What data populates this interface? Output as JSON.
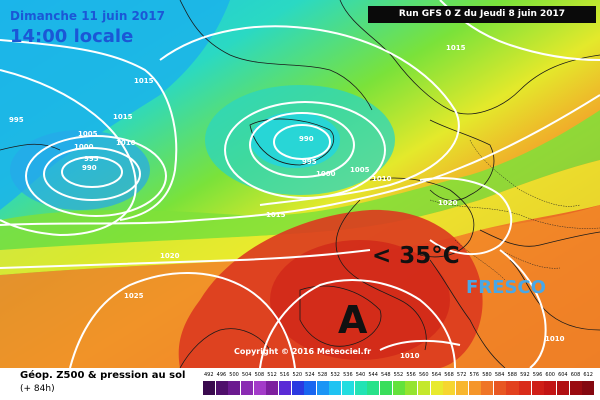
{
  "header": {
    "date": "Dimanche 11 juin 2017",
    "time": "14:00 locale",
    "run": "Run GFS 0 Z du Jeudi 8 juin 2017"
  },
  "annotations": {
    "high_pressure": "A",
    "temperature": "< 35°C",
    "fresco": "FRESCO",
    "copyright": "Copyright © 2016 Meteociel.fr"
  },
  "isobars": [
    {
      "label": "995"
    },
    {
      "label": "1005"
    },
    {
      "label": "1000"
    },
    {
      "label": "995"
    },
    {
      "label": "990"
    },
    {
      "label": "1010"
    },
    {
      "label": "1015"
    },
    {
      "label": "1015"
    },
    {
      "label": "990"
    },
    {
      "label": "995"
    },
    {
      "label": "1000"
    },
    {
      "label": "1005"
    },
    {
      "label": "1010"
    },
    {
      "label": "1015"
    },
    {
      "label": "1015"
    },
    {
      "label": "1020"
    },
    {
      "label": "1020"
    },
    {
      "label": "1025"
    },
    {
      "label": "1010"
    },
    {
      "label": "1010"
    }
  ],
  "footer": {
    "title": "Géop. Z500 & pression au sol",
    "lead": "(+ 84h)"
  },
  "legend": {
    "labels": [
      "492",
      "496",
      "500",
      "504",
      "508",
      "512",
      "516",
      "520",
      "524",
      "528",
      "532",
      "536",
      "540",
      "544",
      "548",
      "552",
      "556",
      "560",
      "564",
      "568",
      "572",
      "576",
      "580",
      "584",
      "588",
      "592",
      "596",
      "600",
      "604",
      "608",
      "612"
    ],
    "colors": [
      "#3a0a4e",
      "#4f0f6b",
      "#6b1a8f",
      "#8a2bb2",
      "#a33bc9",
      "#7d1f9f",
      "#5a2bd6",
      "#2a39e0",
      "#1866f0",
      "#1a95f5",
      "#1fc3f2",
      "#22dde0",
      "#22e3b4",
      "#27e28a",
      "#39de5b",
      "#63e23c",
      "#94e42f",
      "#c4e82c",
      "#e8ea2e",
      "#f6d630",
      "#f8b62d",
      "#f5962a",
      "#ef7526",
      "#e85722",
      "#e2411e",
      "#d92c1a",
      "#cf1e17",
      "#c21414",
      "#b00f12",
      "#9a0b10",
      "#830810"
    ]
  }
}
